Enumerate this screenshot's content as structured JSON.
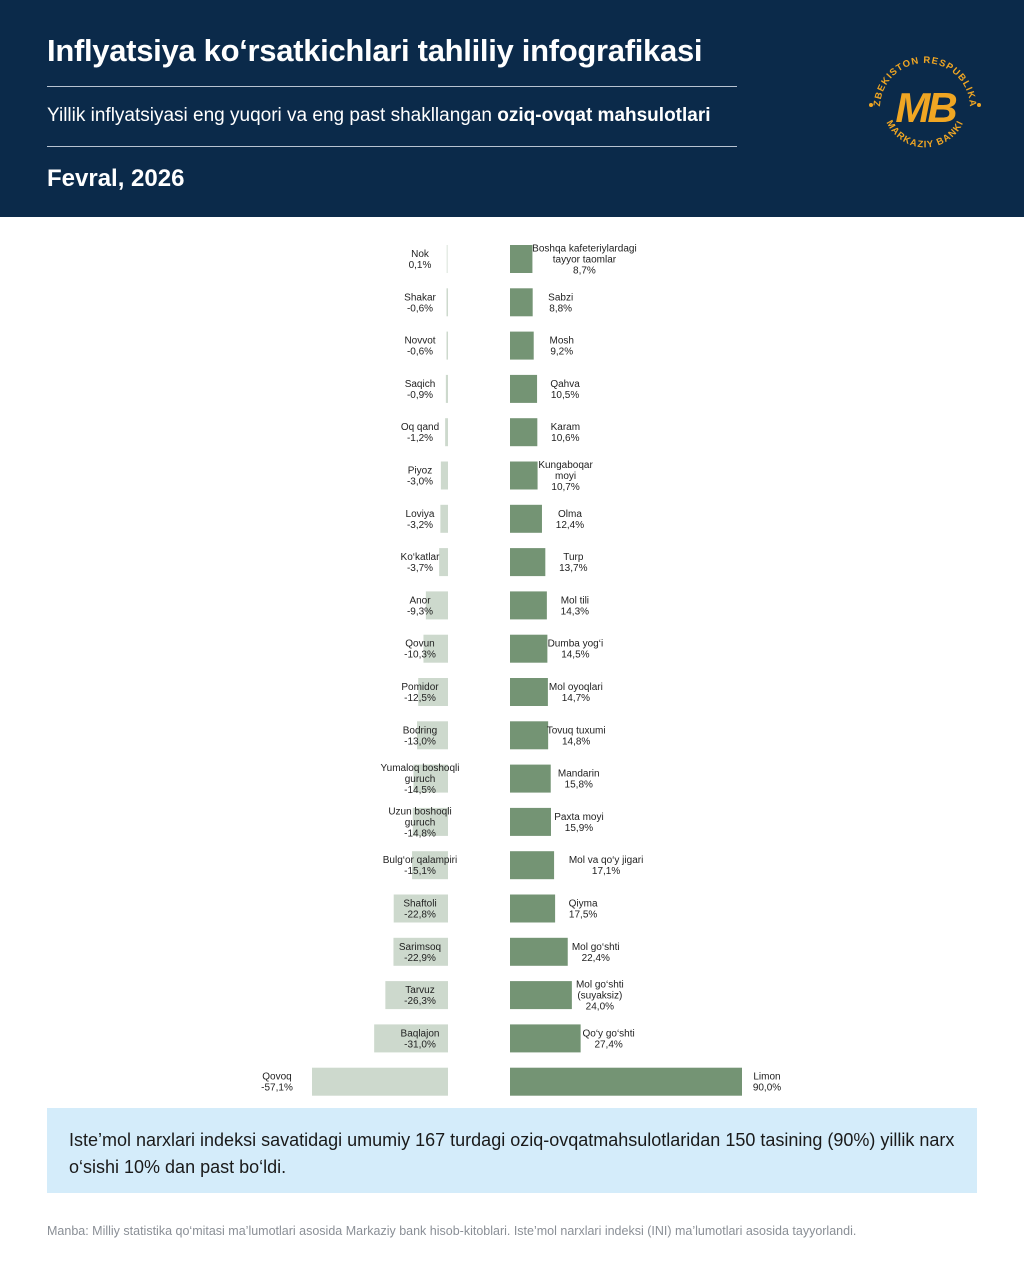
{
  "header": {
    "title": "Inflyatsiya ko‘rsatkichlari tahliliy infografikasi",
    "subtitle_plain": "Yillik inflyatsiyasi eng yuqori va eng past shakllangan ",
    "subtitle_bold": "oziq-ovqat mahsulotlari",
    "date": "Fevral, 2026",
    "logo_ring_text": "O‘ZBEKISTON RESPUBLIKASI",
    "logo_bottom_text": "MARKAZIY BANKI",
    "logo_letters": "MB"
  },
  "colors": {
    "header_bg": "#0b2a4a",
    "negative_bar": "#cdd9cd",
    "positive_bar": "#749474",
    "logo_gold": "#f0a623",
    "note_bg": "#d4ecfa"
  },
  "chart_data": {
    "type": "bar",
    "orientation": "horizontal-diverging",
    "unit": "%",
    "left_series": {
      "name": "Eng past",
      "items": [
        {
          "label": [
            "Nok"
          ],
          "value": 0.1,
          "text": "0,1%"
        },
        {
          "label": [
            "Shakar"
          ],
          "value": -0.6,
          "text": "-0,6%"
        },
        {
          "label": [
            "Novvot"
          ],
          "value": -0.6,
          "text": "-0,6%"
        },
        {
          "label": [
            "Saqich"
          ],
          "value": -0.9,
          "text": "-0,9%"
        },
        {
          "label": [
            "Oq qand"
          ],
          "value": -1.2,
          "text": "-1,2%"
        },
        {
          "label": [
            "Piyoz"
          ],
          "value": -3.0,
          "text": "-3,0%"
        },
        {
          "label": [
            "Loviya"
          ],
          "value": -3.2,
          "text": "-3,2%"
        },
        {
          "label": [
            "Ko‘katlar"
          ],
          "value": -3.7,
          "text": "-3,7%"
        },
        {
          "label": [
            "Anor"
          ],
          "value": -9.3,
          "text": "-9,3%"
        },
        {
          "label": [
            "Qovun"
          ],
          "value": -10.3,
          "text": "-10,3%"
        },
        {
          "label": [
            "Pomidor"
          ],
          "value": -12.5,
          "text": "-12,5%"
        },
        {
          "label": [
            "Bodring"
          ],
          "value": -13.0,
          "text": "-13,0%"
        },
        {
          "label": [
            "Yumaloq boshoqli",
            "guruch"
          ],
          "value": -14.5,
          "text": "-14,5%"
        },
        {
          "label": [
            "Uzun boshoqli",
            "guruch"
          ],
          "value": -14.8,
          "text": "-14,8%"
        },
        {
          "label": [
            "Bulg‘or qalampiri"
          ],
          "value": -15.1,
          "text": "-15,1%"
        },
        {
          "label": [
            "Shaftoli"
          ],
          "value": -22.8,
          "text": "-22,8%"
        },
        {
          "label": [
            "Sarimsoq"
          ],
          "value": -22.9,
          "text": "-22,9%"
        },
        {
          "label": [
            "Tarvuz"
          ],
          "value": -26.3,
          "text": "-26,3%"
        },
        {
          "label": [
            "Baqlajon"
          ],
          "value": -31.0,
          "text": "-31,0%"
        },
        {
          "label": [
            "Qovoq"
          ],
          "value": -57.1,
          "text": "-57,1%"
        }
      ]
    },
    "right_series": {
      "name": "Eng yuqori",
      "items": [
        {
          "label": [
            "Boshqa kafeteriylardagi",
            "tayyor taomlar"
          ],
          "value": 8.7,
          "text": "8,7%"
        },
        {
          "label": [
            "Sabzi"
          ],
          "value": 8.8,
          "text": "8,8%"
        },
        {
          "label": [
            "Mosh"
          ],
          "value": 9.2,
          "text": "9,2%"
        },
        {
          "label": [
            "Qahva"
          ],
          "value": 10.5,
          "text": "10,5%"
        },
        {
          "label": [
            "Karam"
          ],
          "value": 10.6,
          "text": "10,6%"
        },
        {
          "label": [
            "Kungaboqar",
            "moyi"
          ],
          "value": 10.7,
          "text": "10,7%"
        },
        {
          "label": [
            "Olma"
          ],
          "value": 12.4,
          "text": "12,4%"
        },
        {
          "label": [
            "Turp"
          ],
          "value": 13.7,
          "text": "13,7%"
        },
        {
          "label": [
            "Mol tili"
          ],
          "value": 14.3,
          "text": "14,3%"
        },
        {
          "label": [
            "Dumba yog‘i"
          ],
          "value": 14.5,
          "text": "14,5%"
        },
        {
          "label": [
            "Mol oyoqlari"
          ],
          "value": 14.7,
          "text": "14,7%"
        },
        {
          "label": [
            "Tovuq tuxumi"
          ],
          "value": 14.8,
          "text": "14,8%"
        },
        {
          "label": [
            "Mandarin"
          ],
          "value": 15.8,
          "text": "15,8%"
        },
        {
          "label": [
            "Paxta moyi"
          ],
          "value": 15.9,
          "text": "15,9%"
        },
        {
          "label": [
            "Mol va qo‘y jigari"
          ],
          "value": 17.1,
          "text": "17,1%"
        },
        {
          "label": [
            "Qiyma"
          ],
          "value": 17.5,
          "text": "17,5%"
        },
        {
          "label": [
            "Mol go‘shti"
          ],
          "value": 22.4,
          "text": "22,4%"
        },
        {
          "label": [
            "Mol go‘shti",
            "(suyaksiz)"
          ],
          "value": 24.0,
          "text": "24,0%"
        },
        {
          "label": [
            "Qo‘y go‘shti"
          ],
          "value": 27.4,
          "text": "27,4%"
        },
        {
          "label": [
            "Limon"
          ],
          "value": 90.0,
          "text": "90,0%"
        }
      ]
    }
  },
  "note": {
    "text": "Iste’mol narxlari indeksi savatidagi umumiy 167 turdagi oziq-ovqatmahsulotlaridan 150 tasining (90%) yillik narx o‘sishi 10% dan past bo‘ldi."
  },
  "source": {
    "text": "Manba: Milliy statistika qo‘mitasi ma’lumotlari asosida Markaziy bank hisob-kitoblari. Iste’mol narxlari indeksi (INI) ma’lumotlari asosida tayyorlandi."
  }
}
